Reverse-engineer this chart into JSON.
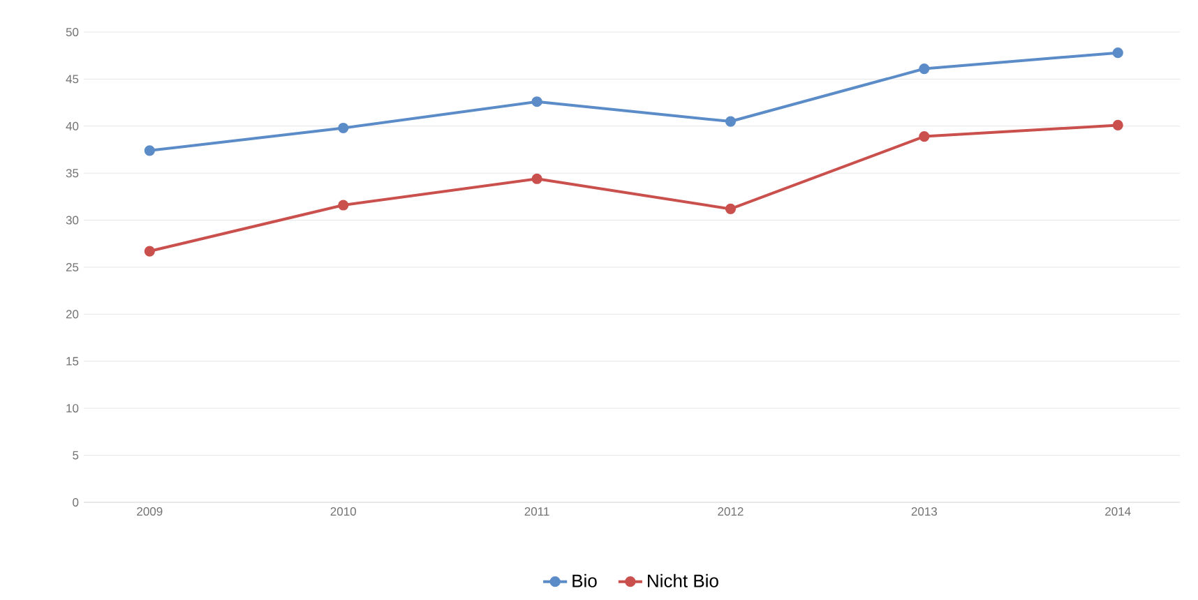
{
  "chart_data": {
    "type": "line",
    "categories": [
      "2009",
      "2010",
      "2011",
      "2012",
      "2013",
      "2014"
    ],
    "series": [
      {
        "name": "Bio",
        "color": "#5b8cc8",
        "values": [
          37.4,
          39.8,
          42.6,
          40.5,
          46.1,
          47.8
        ]
      },
      {
        "name": "Nicht Bio",
        "color": "#c9504d",
        "values": [
          26.7,
          31.6,
          34.4,
          31.2,
          38.9,
          40.1
        ]
      }
    ],
    "ylim": [
      0,
      50
    ],
    "yticks": [
      0,
      5,
      10,
      15,
      20,
      25,
      30,
      35,
      40,
      45,
      50
    ],
    "grid": "y",
    "legend": "bottom",
    "marker": "circle",
    "line_style": "solid"
  }
}
